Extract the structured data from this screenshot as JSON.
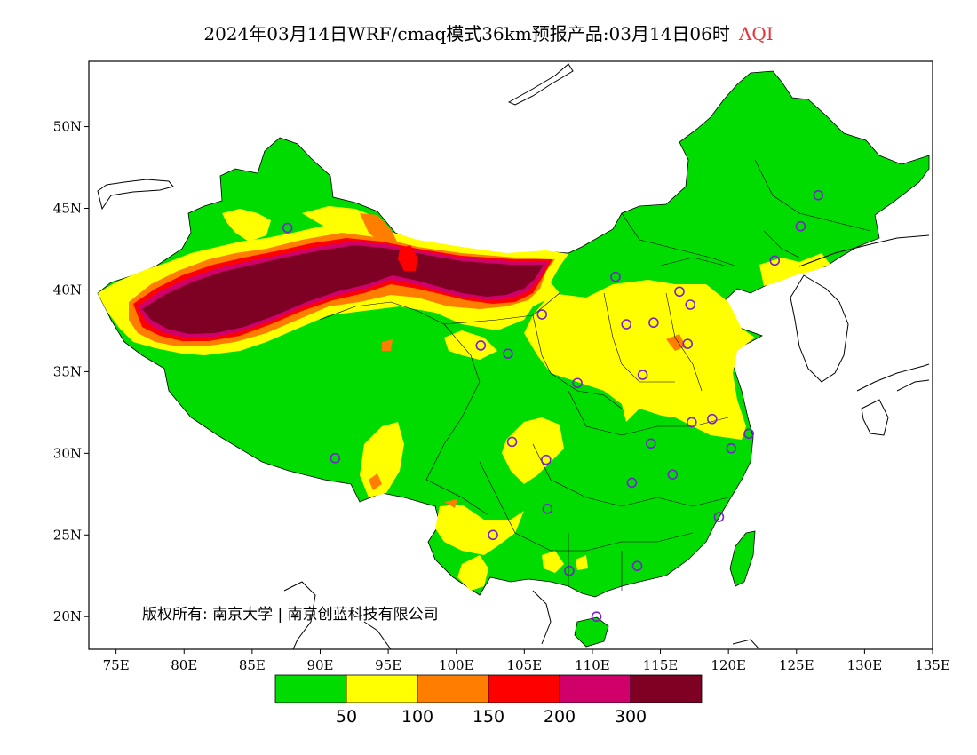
{
  "title": {
    "main": "2024年03月14日WRF/cmaq模式36km预报产品:03月14日06时",
    "variable": "AQI"
  },
  "map": {
    "lon_range": [
      73,
      135
    ],
    "lat_range": [
      18,
      54
    ],
    "x_ticks": [
      "75E",
      "80E",
      "85E",
      "90E",
      "95E",
      "100E",
      "105E",
      "110E",
      "115E",
      "120E",
      "125E",
      "130E",
      "135E"
    ],
    "x_tick_values": [
      75,
      80,
      85,
      90,
      95,
      100,
      105,
      110,
      115,
      120,
      125,
      130,
      135
    ],
    "y_ticks": [
      "20N",
      "25N",
      "30N",
      "35N",
      "40N",
      "45N",
      "50N"
    ],
    "y_tick_values": [
      20,
      25,
      30,
      35,
      40,
      45,
      50
    ],
    "copyright": "版权所有: 南京大学 | 南京创蓝科技有限公司",
    "colors": {
      "good": "#00dc00",
      "moderate": "#ffff00",
      "usg": "#ff7e00",
      "unhealthy": "#ff0000",
      "very_unhealthy": "#d0006a",
      "hazardous": "#7e0023",
      "station": "#7a1fd6"
    },
    "stations": [
      {
        "lon": 87.6,
        "lat": 43.8
      },
      {
        "lon": 126.6,
        "lat": 45.8
      },
      {
        "lon": 125.3,
        "lat": 43.9
      },
      {
        "lon": 123.4,
        "lat": 41.8
      },
      {
        "lon": 111.7,
        "lat": 40.8
      },
      {
        "lon": 116.4,
        "lat": 39.9
      },
      {
        "lon": 117.2,
        "lat": 39.1
      },
      {
        "lon": 114.5,
        "lat": 38.0
      },
      {
        "lon": 112.5,
        "lat": 37.9
      },
      {
        "lon": 106.3,
        "lat": 38.5
      },
      {
        "lon": 101.8,
        "lat": 36.6
      },
      {
        "lon": 103.8,
        "lat": 36.1
      },
      {
        "lon": 117.0,
        "lat": 36.7
      },
      {
        "lon": 108.9,
        "lat": 34.3
      },
      {
        "lon": 113.7,
        "lat": 34.8
      },
      {
        "lon": 117.3,
        "lat": 31.9
      },
      {
        "lon": 118.8,
        "lat": 32.1
      },
      {
        "lon": 121.5,
        "lat": 31.2
      },
      {
        "lon": 120.2,
        "lat": 30.3
      },
      {
        "lon": 114.3,
        "lat": 30.6
      },
      {
        "lon": 104.1,
        "lat": 30.7
      },
      {
        "lon": 106.6,
        "lat": 29.6
      },
      {
        "lon": 91.1,
        "lat": 29.7
      },
      {
        "lon": 112.9,
        "lat": 28.2
      },
      {
        "lon": 115.9,
        "lat": 28.7
      },
      {
        "lon": 106.7,
        "lat": 26.6
      },
      {
        "lon": 119.3,
        "lat": 26.1
      },
      {
        "lon": 102.7,
        "lat": 25.0
      },
      {
        "lon": 108.3,
        "lat": 22.8
      },
      {
        "lon": 113.3,
        "lat": 23.1
      },
      {
        "lon": 110.3,
        "lat": 20.0
      }
    ]
  },
  "colorbar": {
    "labels": [
      "50",
      "100",
      "150",
      "200",
      "300"
    ],
    "colors": [
      "#00dc00",
      "#ffff00",
      "#ff7e00",
      "#ff0000",
      "#d0006a",
      "#7e0023"
    ]
  }
}
